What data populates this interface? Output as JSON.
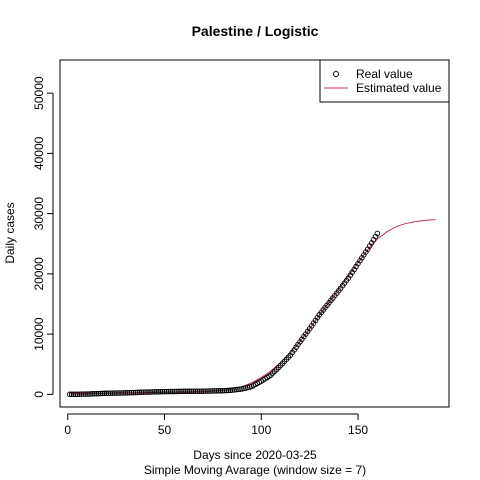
{
  "chart_data": {
    "type": "scatter",
    "title": "Palestine / Logistic",
    "xlabel": "Days since 2020-03-25",
    "subtitle": "Simple Moving Avarage (window size = 7)",
    "ylabel": "Daily cases",
    "xlim": [
      -4,
      197
    ],
    "ylim": [
      -2100,
      55500
    ],
    "x_ticks": [
      0,
      50,
      100,
      150
    ],
    "y_ticks": [
      0,
      10000,
      20000,
      30000,
      40000,
      50000
    ],
    "legend": {
      "position": "top-right",
      "entries": [
        {
          "label": "Real value",
          "marker": "circle",
          "color": "#000000"
        },
        {
          "label": "Estimated value",
          "marker": "line",
          "color": "#c0305f"
        }
      ]
    },
    "series": [
      {
        "name": "Real value",
        "style": "points",
        "color": "#000000",
        "x_start": 1,
        "x_end": 160,
        "anchors": [
          [
            1,
            0
          ],
          [
            10,
            50
          ],
          [
            20,
            180
          ],
          [
            30,
            250
          ],
          [
            40,
            370
          ],
          [
            50,
            450
          ],
          [
            60,
            500
          ],
          [
            70,
            530
          ],
          [
            80,
            600
          ],
          [
            85,
            700
          ],
          [
            90,
            900
          ],
          [
            95,
            1300
          ],
          [
            100,
            2200
          ],
          [
            105,
            3200
          ],
          [
            110,
            4800
          ],
          [
            115,
            6500
          ],
          [
            120,
            8700
          ],
          [
            125,
            10900
          ],
          [
            130,
            13200
          ],
          [
            135,
            15200
          ],
          [
            140,
            17200
          ],
          [
            145,
            19300
          ],
          [
            150,
            21700
          ],
          [
            155,
            24100
          ],
          [
            160,
            26700
          ]
        ]
      },
      {
        "name": "Estimated value",
        "style": "line",
        "color": "#c0305f",
        "anchors": [
          [
            1,
            150
          ],
          [
            20,
            200
          ],
          [
            40,
            260
          ],
          [
            60,
            350
          ],
          [
            70,
            420
          ],
          [
            80,
            650
          ],
          [
            85,
            900
          ],
          [
            90,
            1250
          ],
          [
            95,
            1900
          ],
          [
            100,
            2800
          ],
          [
            105,
            3900
          ],
          [
            110,
            5300
          ],
          [
            115,
            6900
          ],
          [
            120,
            8800
          ],
          [
            125,
            10900
          ],
          [
            130,
            13100
          ],
          [
            135,
            15300
          ],
          [
            140,
            17500
          ],
          [
            145,
            19700
          ],
          [
            150,
            21900
          ],
          [
            155,
            24000
          ],
          [
            160,
            25800
          ],
          [
            165,
            27000
          ],
          [
            170,
            27900
          ],
          [
            175,
            28400
          ],
          [
            180,
            28700
          ],
          [
            185,
            28900
          ],
          [
            190,
            29000
          ]
        ]
      }
    ]
  }
}
